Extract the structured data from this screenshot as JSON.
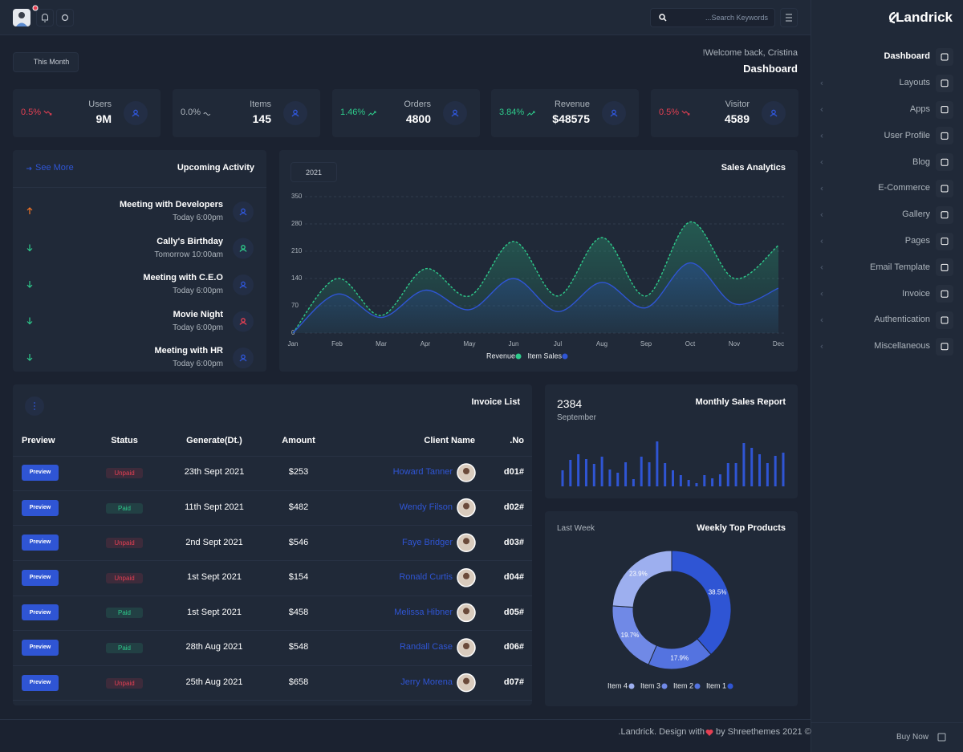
{
  "header": {
    "search_placeholder": "...Search Keywords"
  },
  "sidebar": {
    "brand": "Landrick",
    "menu": [
      "Dashboard",
      "Layouts",
      "Apps",
      "User Profile",
      "Blog",
      "E-Commerce",
      "Gallery",
      "Pages",
      "Email Template",
      "Invoice",
      "Authentication",
      "Miscellaneous"
    ],
    "buy_now": "Buy Now"
  },
  "page": {
    "filter": "This Month",
    "welcome": "!Welcome back, Cristina",
    "title": "Dashboard"
  },
  "stats": [
    {
      "label": "Users",
      "value": "9M",
      "change": "0.5%",
      "trend": "down"
    },
    {
      "label": "Items",
      "value": "145",
      "change": "0.0%",
      "trend": "flat"
    },
    {
      "label": "Orders",
      "value": "4800",
      "change": "1.46%",
      "trend": "up"
    },
    {
      "label": "Revenue",
      "value": "$48575",
      "change": "3.84%",
      "trend": "up"
    },
    {
      "label": "Visitor",
      "value": "4589",
      "change": "0.5%",
      "trend": "down"
    }
  ],
  "activity": {
    "link": "See More",
    "title": "Upcoming Activity",
    "items": [
      {
        "title": "Meeting with Developers",
        "time": "Today 6:00pm",
        "direction": "up",
        "tone": "blue"
      },
      {
        "title": "Cally's Birthday",
        "time": "Tomorrow 10:00am",
        "direction": "down",
        "tone": "green"
      },
      {
        "title": "Meeting with C.E.O",
        "time": "Today 6:00pm",
        "direction": "down",
        "tone": "blue"
      },
      {
        "title": "Movie Night",
        "time": "Today 6:00pm",
        "direction": "down",
        "tone": "red"
      },
      {
        "title": "Meeting with HR",
        "time": "Today 6:00pm",
        "direction": "down",
        "tone": "blue"
      }
    ]
  },
  "invoices": {
    "title": "Invoice List",
    "columns": [
      "Preview",
      "Status",
      "Generate(Dt.)",
      "Amount",
      "Client Name",
      ".No"
    ],
    "rows": [
      {
        "preview": "Preview",
        "status": "Unpaid",
        "tone": "red",
        "date": "23th Sept 2021",
        "amount": "$253",
        "client": "Howard Tanner",
        "no": "d01#"
      },
      {
        "preview": "Preview",
        "status": "Paid",
        "tone": "green",
        "date": "11th Sept 2021",
        "amount": "$482",
        "client": "Wendy Filson",
        "no": "d02#"
      },
      {
        "preview": "Preview",
        "status": "Unpaid",
        "tone": "red",
        "date": "2nd Sept 2021",
        "amount": "$546",
        "client": "Faye Bridger",
        "no": "d03#"
      },
      {
        "preview": "Preview",
        "status": "Unpaid",
        "tone": "red",
        "date": "1st Sept 2021",
        "amount": "$154",
        "client": "Ronald Curtis",
        "no": "d04#"
      },
      {
        "preview": "Preview",
        "status": "Paid",
        "tone": "green",
        "date": "1st Sept 2021",
        "amount": "$458",
        "client": "Melissa Hibner",
        "no": "d05#"
      },
      {
        "preview": "Preview",
        "status": "Paid",
        "tone": "green",
        "date": "28th Aug 2021",
        "amount": "$548",
        "client": "Randall Case",
        "no": "d06#"
      },
      {
        "preview": "Preview",
        "status": "Unpaid",
        "tone": "red",
        "date": "25th Aug 2021",
        "amount": "$658",
        "client": "Jerry Morena",
        "no": "d07#"
      }
    ]
  },
  "footer": {
    "before": ".Landrick. Design with",
    "after": "by Shreethemes 2021 ©"
  },
  "chart_data": [
    {
      "type": "line",
      "title": "Sales Analytics",
      "filter": "2021",
      "categories": [
        "Jan",
        "Feb",
        "Mar",
        "Apr",
        "May",
        "Jun",
        "Jul",
        "Aug",
        "Sep",
        "Oct",
        "Nov",
        "Dec"
      ],
      "series": [
        {
          "name": "Revenue",
          "color": "#2eca8b",
          "dashed": true,
          "values": [
            0,
            140,
            45,
            165,
            95,
            235,
            95,
            245,
            95,
            285,
            140,
            225
          ]
        },
        {
          "name": "Item Sales",
          "color": "#2f55d4",
          "dashed": false,
          "values": [
            0,
            100,
            40,
            110,
            60,
            140,
            55,
            130,
            65,
            180,
            75,
            115
          ]
        }
      ],
      "ylim": [
        0,
        350
      ],
      "yticks": [
        0,
        70,
        140,
        210,
        280,
        350
      ],
      "grid": true,
      "smooth": true
    },
    {
      "type": "bar",
      "title": "Monthly Sales Report",
      "total": 2384,
      "period": "September",
      "color": "#2f55d4",
      "values": [
        20,
        33,
        40,
        34,
        28,
        37,
        21,
        17,
        30,
        9,
        37,
        30,
        56,
        29,
        20,
        14,
        8,
        4,
        14,
        10,
        15,
        29,
        29,
        54,
        48,
        40,
        29,
        38,
        42
      ],
      "ylim": [
        0,
        60
      ]
    },
    {
      "type": "pie",
      "title": "Weekly Top Products",
      "subtitle": "Last Week",
      "donut": true,
      "categories": [
        "Item 1",
        "Item 2",
        "Item 3",
        "Item 4"
      ],
      "values": [
        38.5,
        17.9,
        19.7,
        23.9
      ],
      "value_labels": [
        "38.5%",
        "17.9%",
        "19.7%",
        "23.9%"
      ],
      "colors": [
        "#2f55d4",
        "#5473e0",
        "#7089e6",
        "#9dafef"
      ]
    }
  ]
}
